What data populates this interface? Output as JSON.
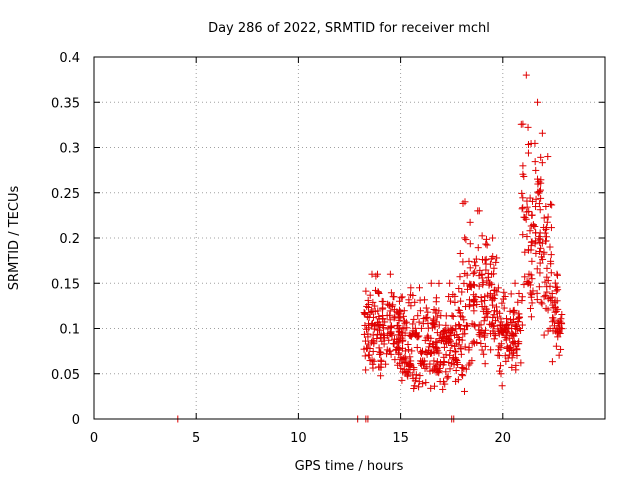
{
  "chart_data": {
    "type": "scatter",
    "title": "Day 286 of 2022, SRMTID for receiver mchl",
    "xlabel": "GPS time / hours",
    "ylabel": "SRMTID / TECUs",
    "xlim": [
      0,
      25
    ],
    "ylim": [
      0,
      0.4
    ],
    "xticks": [
      0,
      5,
      10,
      15,
      20
    ],
    "yticks": [
      0,
      0.05,
      0.1,
      0.15,
      0.2,
      0.25,
      0.3,
      0.35,
      0.4
    ],
    "xtick_labels": [
      "0",
      "5",
      "10",
      "15",
      "20"
    ],
    "ytick_labels": [
      "0",
      "0.05",
      "0.1",
      "0.15",
      "0.2",
      "0.25",
      "0.3",
      "0.35",
      "0.4"
    ],
    "grid": true,
    "color": "#e00000",
    "marker": "plus",
    "series": [
      {
        "name": "SRMTID",
        "zero_points_x": [
          4.1,
          12.9,
          13.3,
          13.4,
          17.5,
          17.6
        ],
        "cluster_envelope": [
          {
            "x0": 13.2,
            "x1": 14.0,
            "ymin": 0.04,
            "ymax": 0.16
          },
          {
            "x0": 14.0,
            "x1": 15.0,
            "ymin": 0.04,
            "ymax": 0.16
          },
          {
            "x0": 15.0,
            "x1": 16.0,
            "ymin": 0.02,
            "ymax": 0.145
          },
          {
            "x0": 16.0,
            "x1": 17.0,
            "ymin": 0.025,
            "ymax": 0.15
          },
          {
            "x0": 17.0,
            "x1": 17.8,
            "ymin": 0.02,
            "ymax": 0.15
          },
          {
            "x0": 17.8,
            "x1": 18.5,
            "ymin": 0.02,
            "ymax": 0.24
          },
          {
            "x0": 18.5,
            "x1": 19.2,
            "ymin": 0.04,
            "ymax": 0.23
          },
          {
            "x0": 19.2,
            "x1": 19.8,
            "ymin": 0.06,
            "ymax": 0.2
          },
          {
            "x0": 19.8,
            "x1": 20.3,
            "ymin": 0.03,
            "ymax": 0.14
          },
          {
            "x0": 20.3,
            "x1": 20.9,
            "ymin": 0.05,
            "ymax": 0.15
          },
          {
            "x0": 20.9,
            "x1": 21.4,
            "ymin": 0.07,
            "ymax": 0.38
          },
          {
            "x0": 21.4,
            "x1": 22.0,
            "ymin": 0.09,
            "ymax": 0.35
          },
          {
            "x0": 22.0,
            "x1": 22.4,
            "ymin": 0.07,
            "ymax": 0.29
          },
          {
            "x0": 22.4,
            "x1": 22.9,
            "ymin": 0.06,
            "ymax": 0.16
          }
        ],
        "point_count": 900
      }
    ]
  }
}
